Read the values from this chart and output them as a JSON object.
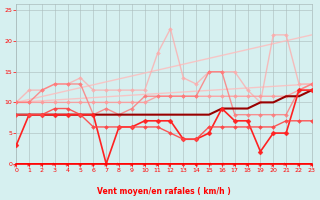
{
  "xlabel": "Vent moyen/en rafales ( km/h )",
  "xlim": [
    0,
    23
  ],
  "ylim": [
    0,
    26
  ],
  "yticks": [
    0,
    5,
    10,
    15,
    20,
    25
  ],
  "xticks": [
    0,
    1,
    2,
    3,
    4,
    5,
    6,
    7,
    8,
    9,
    10,
    11,
    12,
    13,
    14,
    15,
    16,
    17,
    18,
    19,
    20,
    21,
    22,
    23
  ],
  "background_color": "#d6f0f0",
  "grid_color": "#aabbbb",
  "lines": [
    {
      "x": [
        0,
        23
      ],
      "y": [
        10,
        21
      ],
      "color": "#ffbbbb",
      "lw": 1.0,
      "marker": null,
      "ms": 0,
      "alpha": 0.8
    },
    {
      "x": [
        0,
        23
      ],
      "y": [
        10,
        13
      ],
      "color": "#ffbbbb",
      "lw": 1.0,
      "marker": null,
      "ms": 0,
      "alpha": 0.8
    },
    {
      "x": [
        0,
        1,
        2,
        3,
        4,
        5,
        6,
        7,
        8,
        9,
        10,
        11,
        12,
        13,
        14,
        15,
        16,
        17,
        18,
        19,
        20,
        21,
        22,
        23
      ],
      "y": [
        10,
        12,
        12,
        13,
        13,
        14,
        12,
        12,
        12,
        12,
        12,
        18,
        22,
        14,
        13,
        15,
        15,
        15,
        12,
        10,
        21,
        21,
        13,
        13
      ],
      "color": "#ffaaaa",
      "lw": 1.0,
      "marker": "D",
      "ms": 2.0,
      "alpha": 0.75
    },
    {
      "x": [
        0,
        1,
        2,
        3,
        4,
        5,
        6,
        7,
        8,
        9,
        10,
        11,
        12,
        13,
        14,
        15,
        16,
        17,
        18,
        19,
        20,
        21,
        22,
        23
      ],
      "y": [
        10,
        10,
        10,
        10,
        10,
        10,
        10,
        10,
        10,
        10,
        10,
        11,
        11,
        11,
        11,
        11,
        11,
        11,
        11,
        11,
        11,
        11,
        12,
        13
      ],
      "color": "#ff9999",
      "lw": 1.0,
      "marker": "D",
      "ms": 2.0,
      "alpha": 0.85
    },
    {
      "x": [
        0,
        1,
        2,
        3,
        4,
        5,
        6,
        7,
        8,
        9,
        10,
        11,
        12,
        13,
        14,
        15,
        16,
        17,
        18,
        19,
        20,
        21,
        22,
        23
      ],
      "y": [
        10,
        10,
        12,
        13,
        13,
        13,
        8,
        9,
        8,
        9,
        11,
        11,
        11,
        11,
        11,
        15,
        15,
        8,
        8,
        8,
        8,
        8,
        12,
        13
      ],
      "color": "#ff7777",
      "lw": 1.0,
      "marker": "D",
      "ms": 2.0,
      "alpha": 0.8
    },
    {
      "x": [
        0,
        1,
        2,
        3,
        4,
        5,
        6,
        7,
        8,
        9,
        10,
        11,
        12,
        13,
        14,
        15,
        16,
        17,
        18,
        19,
        20,
        21,
        22,
        23
      ],
      "y": [
        8,
        8,
        8,
        8,
        8,
        8,
        8,
        8,
        8,
        8,
        8,
        8,
        8,
        8,
        8,
        8,
        9,
        9,
        9,
        10,
        10,
        11,
        11,
        12
      ],
      "color": "#990000",
      "lw": 1.5,
      "marker": null,
      "ms": 0,
      "alpha": 1.0
    },
    {
      "x": [
        0,
        1,
        2,
        3,
        4,
        5,
        6,
        7,
        8,
        9,
        10,
        11,
        12,
        13,
        14,
        15,
        16,
        17,
        18,
        19,
        20,
        21,
        22,
        23
      ],
      "y": [
        3,
        8,
        8,
        8,
        8,
        8,
        8,
        0,
        6,
        6,
        7,
        7,
        7,
        4,
        4,
        5,
        9,
        7,
        7,
        2,
        5,
        5,
        12,
        12
      ],
      "color": "#ff2222",
      "lw": 1.2,
      "marker": "D",
      "ms": 2.5,
      "alpha": 1.0
    },
    {
      "x": [
        0,
        1,
        2,
        3,
        4,
        5,
        6,
        7,
        8,
        9,
        10,
        11,
        12,
        13,
        14,
        15,
        16,
        17,
        18,
        19,
        20,
        21,
        22,
        23
      ],
      "y": [
        8,
        8,
        8,
        9,
        9,
        8,
        6,
        6,
        6,
        6,
        6,
        6,
        5,
        4,
        4,
        6,
        6,
        6,
        6,
        6,
        6,
        7,
        7,
        7
      ],
      "color": "#ff4444",
      "lw": 1.0,
      "marker": "D",
      "ms": 2.0,
      "alpha": 0.9
    }
  ],
  "wind_x": [
    0,
    1,
    2,
    3,
    4,
    5,
    6,
    7,
    8,
    9,
    10,
    11,
    12,
    13,
    14,
    15,
    16,
    17,
    18,
    19,
    20,
    21,
    22,
    23
  ],
  "wind_dirs": [
    225,
    270,
    270,
    315,
    270,
    270,
    270,
    270,
    315,
    270,
    270,
    270,
    225,
    180,
    90,
    45,
    45,
    270,
    270,
    270,
    225,
    315,
    270,
    270
  ]
}
